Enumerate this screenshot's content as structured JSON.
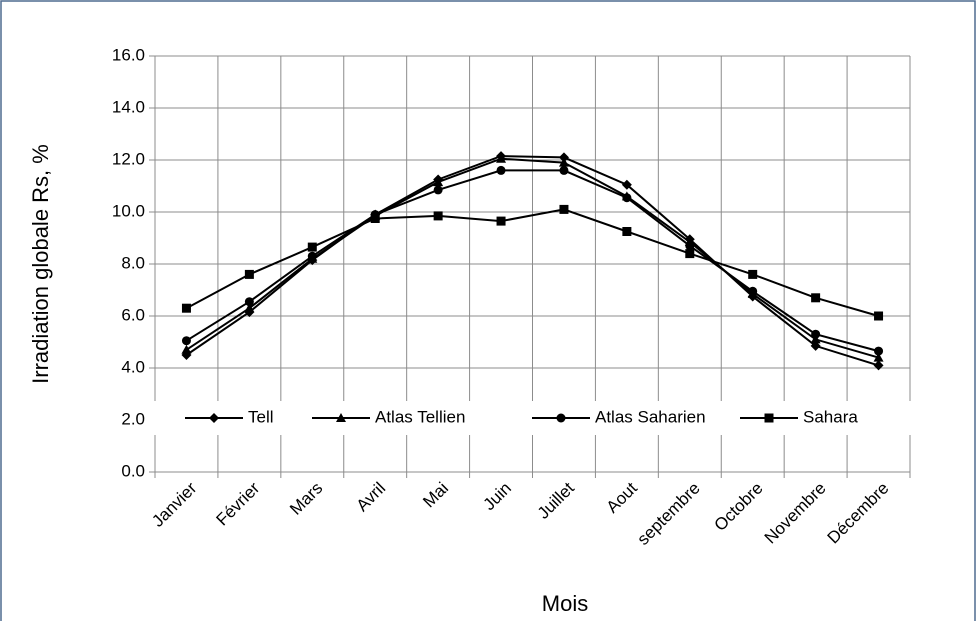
{
  "chart_data": {
    "type": "line",
    "x_label": "Mois",
    "y_label": "Irradiation globale Rs, %",
    "categories": [
      "Janvier",
      "Février",
      "Mars",
      "Avril",
      "Mai",
      "Juin",
      "Juillet",
      "Aout",
      "septembre",
      "Octobre",
      "Novembre",
      "Décembre"
    ],
    "series": [
      {
        "name": "Tell",
        "color": "#000000",
        "marker": "diamond",
        "values": [
          4.5,
          6.15,
          8.15,
          9.9,
          11.25,
          12.15,
          12.1,
          11.05,
          8.95,
          6.75,
          4.85,
          4.1
        ]
      },
      {
        "name": "Atlas Tellien",
        "color": "#000000",
        "marker": "triangle",
        "values": [
          4.7,
          6.3,
          8.2,
          9.85,
          11.15,
          12.05,
          11.9,
          10.6,
          8.85,
          6.85,
          5.1,
          4.4
        ]
      },
      {
        "name": "Atlas Saharien",
        "color": "#000000",
        "marker": "circle",
        "values": [
          5.05,
          6.55,
          8.3,
          9.9,
          10.85,
          11.6,
          11.6,
          10.55,
          8.7,
          6.95,
          5.3,
          4.65
        ]
      },
      {
        "name": "Sahara",
        "color": "#000000",
        "marker": "square",
        "values": [
          6.3,
          7.6,
          8.65,
          9.75,
          9.85,
          9.65,
          10.1,
          9.25,
          8.4,
          7.6,
          6.7,
          6.0
        ]
      }
    ],
    "ylim": [
      0,
      16
    ],
    "yticks": [
      {
        "value": 0,
        "label": "0.0"
      },
      {
        "value": 2,
        "label": "2.0"
      },
      {
        "value": 4,
        "label": "4.0"
      },
      {
        "value": 6,
        "label": "6.0"
      },
      {
        "value": 8,
        "label": "8.0"
      },
      {
        "value": 10,
        "label": "10.0"
      },
      {
        "value": 12,
        "label": "12.0"
      },
      {
        "value": 14,
        "label": "14.0"
      },
      {
        "value": 16,
        "label": "16.0"
      }
    ],
    "grid": true,
    "legend": "bottom"
  }
}
